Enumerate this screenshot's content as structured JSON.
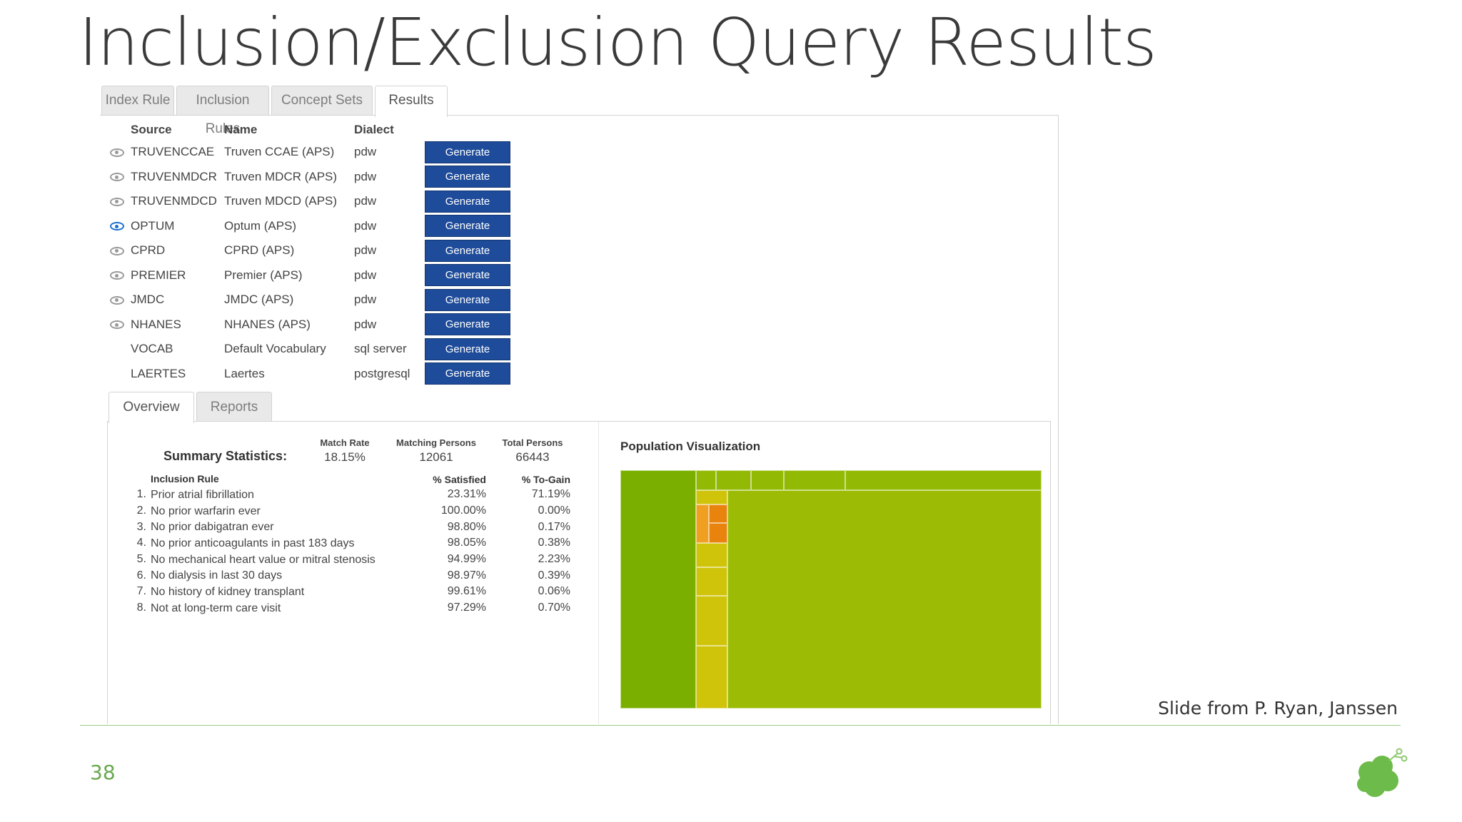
{
  "slide": {
    "title": "Inclusion/Exclusion Query Results",
    "credit": "Slide from P. Ryan, Janssen",
    "page_number": "38"
  },
  "tabs": [
    {
      "label": "Index Rule",
      "active": false
    },
    {
      "label": "Inclusion Rules",
      "active": false
    },
    {
      "label": "Concept Sets",
      "active": false
    },
    {
      "label": "Results",
      "active": true
    }
  ],
  "sources_table": {
    "headers": {
      "source": "Source",
      "name": "Name",
      "dialect": "Dialect"
    },
    "rows": [
      {
        "source": "TRUVENCCAE",
        "name": "Truven CCAE (APS)",
        "dialect": "pdw",
        "button": "Generate",
        "eye": "gray"
      },
      {
        "source": "TRUVENMDCR",
        "name": "Truven MDCR (APS)",
        "dialect": "pdw",
        "button": "Generate",
        "eye": "gray"
      },
      {
        "source": "TRUVENMDCD",
        "name": "Truven MDCD (APS)",
        "dialect": "pdw",
        "button": "Generate",
        "eye": "gray"
      },
      {
        "source": "OPTUM",
        "name": "Optum (APS)",
        "dialect": "pdw",
        "button": "Generate",
        "eye": "blue"
      },
      {
        "source": "CPRD",
        "name": "CPRD (APS)",
        "dialect": "pdw",
        "button": "Generate",
        "eye": "gray"
      },
      {
        "source": "PREMIER",
        "name": "Premier (APS)",
        "dialect": "pdw",
        "button": "Generate",
        "eye": "gray"
      },
      {
        "source": "JMDC",
        "name": "JMDC (APS)",
        "dialect": "pdw",
        "button": "Generate",
        "eye": "gray"
      },
      {
        "source": "NHANES",
        "name": "NHANES (APS)",
        "dialect": "pdw",
        "button": "Generate",
        "eye": "gray"
      },
      {
        "source": "VOCAB",
        "name": "Default Vocabulary",
        "dialect": "sql server",
        "button": "Generate",
        "eye": "none"
      },
      {
        "source": "LAERTES",
        "name": "Laertes",
        "dialect": "postgresql",
        "button": "Generate",
        "eye": "none"
      }
    ]
  },
  "subtabs": [
    {
      "label": "Overview",
      "active": true
    },
    {
      "label": "Reports",
      "active": false
    }
  ],
  "summary": {
    "label": "Summary Statistics:",
    "match_rate": {
      "label": "Match Rate",
      "value": "18.15%"
    },
    "matching_persons": {
      "label": "Matching Persons",
      "value": "12061"
    },
    "total_persons": {
      "label": "Total Persons",
      "value": "66443"
    }
  },
  "rules_table": {
    "headers": {
      "rule": "Inclusion Rule",
      "satisfied": "% Satisfied",
      "to_gain": "% To-Gain"
    },
    "rows": [
      {
        "num": "1.",
        "rule": "Prior atrial fibrillation",
        "satisfied": "23.31%",
        "to_gain": "71.19%"
      },
      {
        "num": "2.",
        "rule": "No prior warfarin ever",
        "satisfied": "100.00%",
        "to_gain": "0.00%"
      },
      {
        "num": "3.",
        "rule": "No prior dabigatran ever",
        "satisfied": "98.80%",
        "to_gain": "0.17%"
      },
      {
        "num": "4.",
        "rule": "No prior anticoagulants in past 183 days",
        "satisfied": "98.05%",
        "to_gain": "0.38%"
      },
      {
        "num": "5.",
        "rule": "No mechanical heart value or mitral stenosis",
        "satisfied": "94.99%",
        "to_gain": "2.23%"
      },
      {
        "num": "6.",
        "rule": "No dialysis in last 30 days",
        "satisfied": "98.97%",
        "to_gain": "0.39%"
      },
      {
        "num": "7.",
        "rule": "No history of kidney transplant",
        "satisfied": "99.61%",
        "to_gain": "0.06%"
      },
      {
        "num": "8.",
        "rule": "Not at long-term care visit",
        "satisfied": "97.29%",
        "to_gain": "0.70%"
      }
    ]
  },
  "visualization": {
    "title": "Population Visualization",
    "colors": {
      "left_block": "#7aaf00",
      "main_block": "#9bbb05",
      "top_strip": "#92b904",
      "narrow_column": "#cfc40a",
      "hot_cells": "#e8830e",
      "warm_cells": "#f0a020"
    }
  }
}
